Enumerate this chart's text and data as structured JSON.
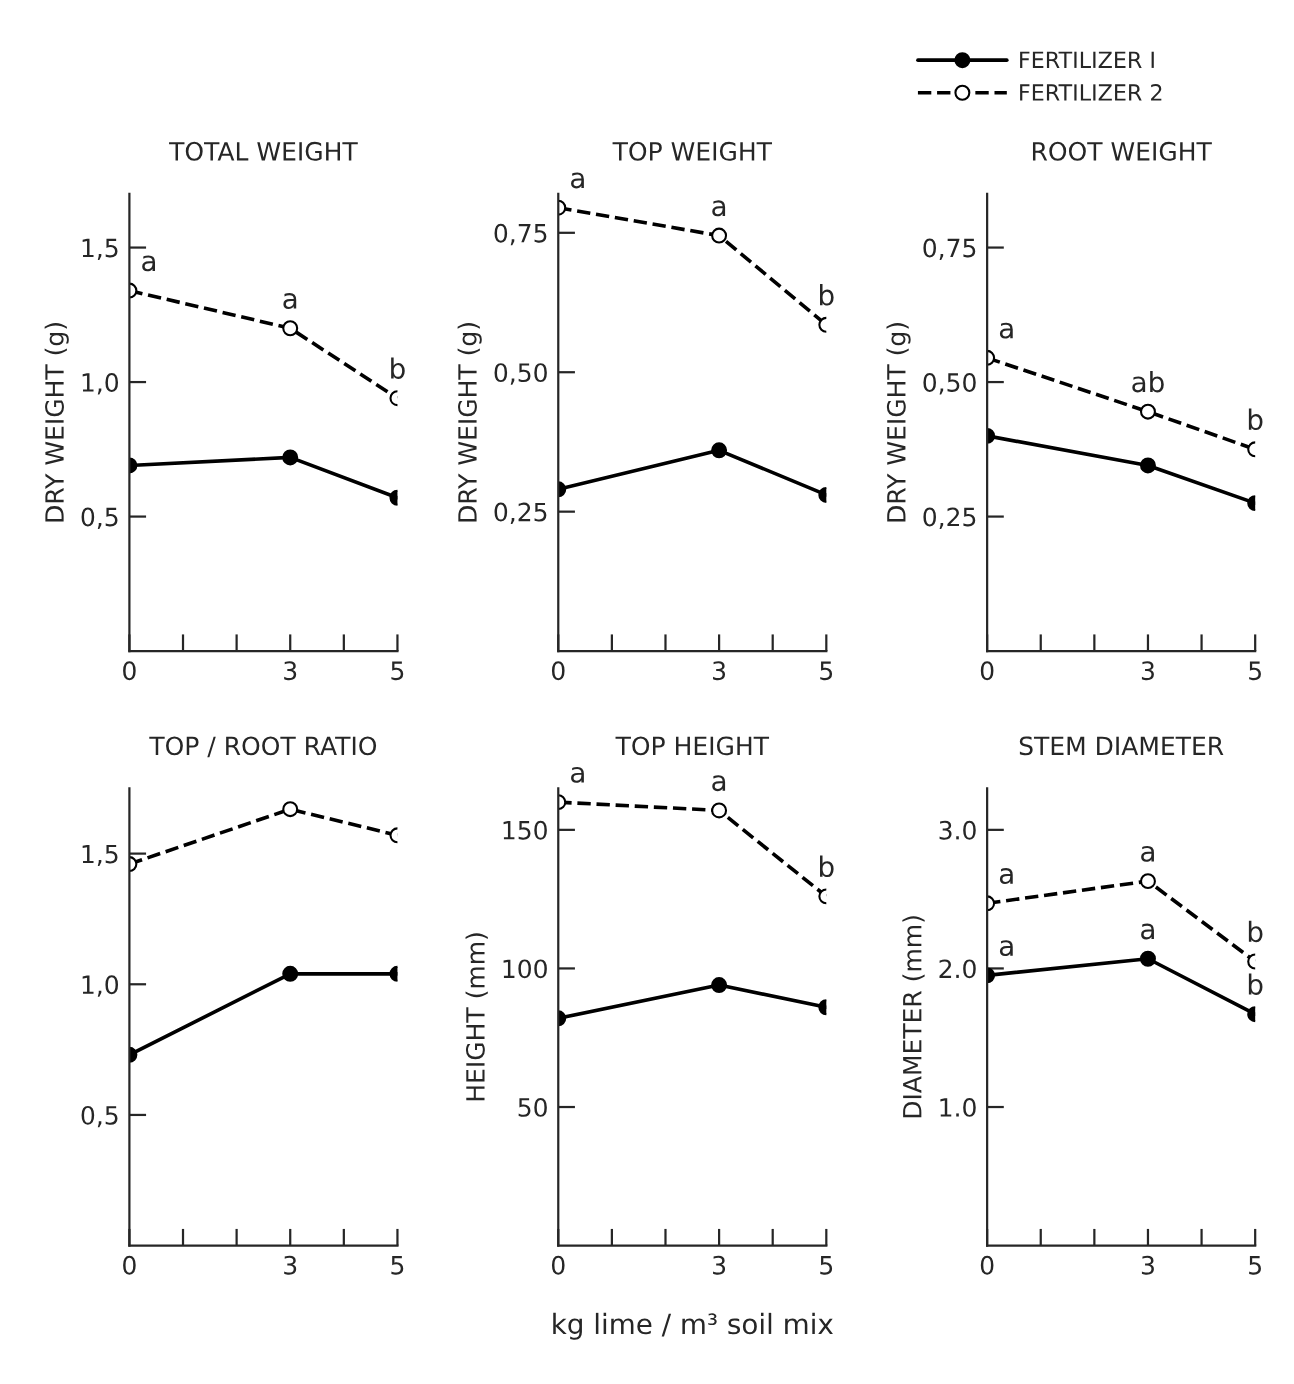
{
  "chart_data": [
    {
      "type": "line",
      "title": "TOTAL WEIGHT",
      "ylabel": "DRY WEIGHT (g)",
      "x": [
        0,
        3,
        5
      ],
      "xlim": [
        0,
        5
      ],
      "xticks": [
        0,
        {
          "value": 1,
          "label": null
        },
        {
          "value": 2,
          "label": null
        },
        3,
        {
          "value": 4,
          "label": null
        },
        5
      ],
      "ylim": [
        0,
        1.7
      ],
      "yticks": [
        {
          "value": 0.5,
          "label": "0,5"
        },
        {
          "value": 1.0,
          "label": "1,0"
        },
        {
          "value": 1.5,
          "label": "1,5"
        }
      ],
      "grid": false,
      "marker": "circle",
      "series": [
        {
          "color": "#000000",
          "line_style": "solid",
          "values": [
            0.69,
            0.72,
            0.57
          ]
        },
        {
          "color": "#000000",
          "line_style": "dashed",
          "values": [
            1.34,
            1.2,
            0.94
          ]
        }
      ],
      "annotations": [
        {
          "text": "a",
          "x": 0,
          "y": 1.34
        },
        {
          "text": "a",
          "x": 3,
          "y": 1.2
        },
        {
          "text": "b",
          "x": 5,
          "y": 0.94
        }
      ]
    },
    {
      "type": "line",
      "title": "TOP WEIGHT",
      "ylabel": "DRY WEIGHT (g)",
      "x": [
        0,
        3,
        5
      ],
      "xlim": [
        0,
        5
      ],
      "xticks": [
        0,
        {
          "value": 1,
          "label": null
        },
        {
          "value": 2,
          "label": null
        },
        3,
        {
          "value": 4,
          "label": null
        },
        5
      ],
      "ylim": [
        0,
        0.82
      ],
      "yticks": [
        {
          "value": 0.25,
          "label": "0,25"
        },
        {
          "value": 0.5,
          "label": "0,50"
        },
        {
          "value": 0.75,
          "label": "0,75"
        }
      ],
      "grid": false,
      "marker": "circle",
      "series": [
        {
          "color": "#000000",
          "line_style": "solid",
          "values": [
            0.29,
            0.36,
            0.28
          ]
        },
        {
          "color": "#000000",
          "line_style": "dashed",
          "values": [
            0.795,
            0.745,
            0.585
          ]
        }
      ],
      "annotations": [
        {
          "text": "a",
          "x": 0,
          "y": 0.795
        },
        {
          "text": "a",
          "x": 3,
          "y": 0.745
        },
        {
          "text": "b",
          "x": 5,
          "y": 0.585
        }
      ]
    },
    {
      "type": "line",
      "title": "ROOT WEIGHT",
      "ylabel": "DRY WEIGHT (g)",
      "x": [
        0,
        3,
        5
      ],
      "xlim": [
        0,
        5
      ],
      "xticks": [
        0,
        {
          "value": 1,
          "label": null
        },
        {
          "value": 2,
          "label": null
        },
        3,
        {
          "value": 4,
          "label": null
        },
        5
      ],
      "ylim": [
        0,
        0.85
      ],
      "yticks": [
        {
          "value": 0.25,
          "label": "0,25"
        },
        {
          "value": 0.5,
          "label": "0,50"
        },
        {
          "value": 0.75,
          "label": "0,75"
        }
      ],
      "grid": false,
      "marker": "circle",
      "legend": "top",
      "series": [
        {
          "name": "FERTILIZER I",
          "color": "#000000",
          "line_style": "solid",
          "values": [
            0.4,
            0.345,
            0.275
          ]
        },
        {
          "name": "FERTILIZER 2",
          "color": "#000000",
          "line_style": "dashed",
          "values": [
            0.545,
            0.445,
            0.375
          ]
        }
      ],
      "annotations": [
        {
          "text": "a",
          "x": 0,
          "y": 0.545
        },
        {
          "text": "ab",
          "x": 3,
          "y": 0.445
        },
        {
          "text": "b",
          "x": 5,
          "y": 0.375
        }
      ]
    },
    {
      "type": "line",
      "title": "TOP / ROOT RATIO",
      "x": [
        0,
        3,
        5
      ],
      "xlim": [
        0,
        5
      ],
      "xticks": [
        0,
        {
          "value": 1,
          "label": null
        },
        {
          "value": 2,
          "label": null
        },
        3,
        {
          "value": 4,
          "label": null
        },
        5
      ],
      "ylim": [
        0,
        1.75
      ],
      "yticks": [
        {
          "value": 0.5,
          "label": "0,5"
        },
        {
          "value": 1.0,
          "label": "1,0"
        },
        {
          "value": 1.5,
          "label": "1,5"
        }
      ],
      "grid": false,
      "marker": "circle",
      "series": [
        {
          "color": "#000000",
          "line_style": "solid",
          "values": [
            0.73,
            1.04,
            1.04
          ]
        },
        {
          "color": "#000000",
          "line_style": "dashed",
          "values": [
            1.46,
            1.67,
            1.57
          ]
        }
      ]
    },
    {
      "type": "line",
      "title": "TOP HEIGHT",
      "ylabel": "HEIGHT (mm)",
      "xlabel": "kg lime / m³ soil mix",
      "x": [
        0,
        3,
        5
      ],
      "xlim": [
        0,
        5
      ],
      "xticks": [
        0,
        {
          "value": 1,
          "label": null
        },
        {
          "value": 2,
          "label": null
        },
        3,
        {
          "value": 4,
          "label": null
        },
        5
      ],
      "ylim": [
        0,
        165
      ],
      "yticks": [
        50,
        100,
        150
      ],
      "grid": false,
      "marker": "circle",
      "series": [
        {
          "color": "#000000",
          "line_style": "solid",
          "values": [
            82,
            94,
            86
          ]
        },
        {
          "color": "#000000",
          "line_style": "dashed",
          "values": [
            160,
            157,
            126
          ]
        }
      ],
      "annotations": [
        {
          "text": "a",
          "x": 0,
          "y": 160
        },
        {
          "text": "a",
          "x": 3,
          "y": 157
        },
        {
          "text": "b",
          "x": 5,
          "y": 126
        }
      ]
    },
    {
      "type": "line",
      "title": "STEM DIAMETER",
      "ylabel": "DIAMETER (mm)",
      "x": [
        0,
        3,
        5
      ],
      "xlim": [
        0,
        5
      ],
      "xticks": [
        0,
        {
          "value": 1,
          "label": null
        },
        {
          "value": 2,
          "label": null
        },
        3,
        {
          "value": 4,
          "label": null
        },
        5
      ],
      "ylim": [
        0,
        3.3
      ],
      "yticks": [
        {
          "value": 1.0,
          "label": "1.0"
        },
        {
          "value": 2.0,
          "label": "2.0"
        },
        {
          "value": 3.0,
          "label": "3.0"
        }
      ],
      "grid": false,
      "marker": "circle",
      "series": [
        {
          "color": "#000000",
          "line_style": "solid",
          "values": [
            1.95,
            2.07,
            1.67
          ]
        },
        {
          "color": "#000000",
          "line_style": "dashed",
          "values": [
            2.47,
            2.63,
            2.05
          ]
        }
      ],
      "annotations": [
        {
          "text": "a",
          "x": 0,
          "y": 2.47
        },
        {
          "text": "a",
          "x": 3,
          "y": 2.63
        },
        {
          "text": "b",
          "x": 5,
          "y": 2.05
        },
        {
          "text": "a",
          "x": 0,
          "y": 1.95
        },
        {
          "text": "a",
          "x": 3,
          "y": 2.07
        },
        {
          "text": "b",
          "x": 5,
          "y": 1.67
        }
      ]
    }
  ]
}
